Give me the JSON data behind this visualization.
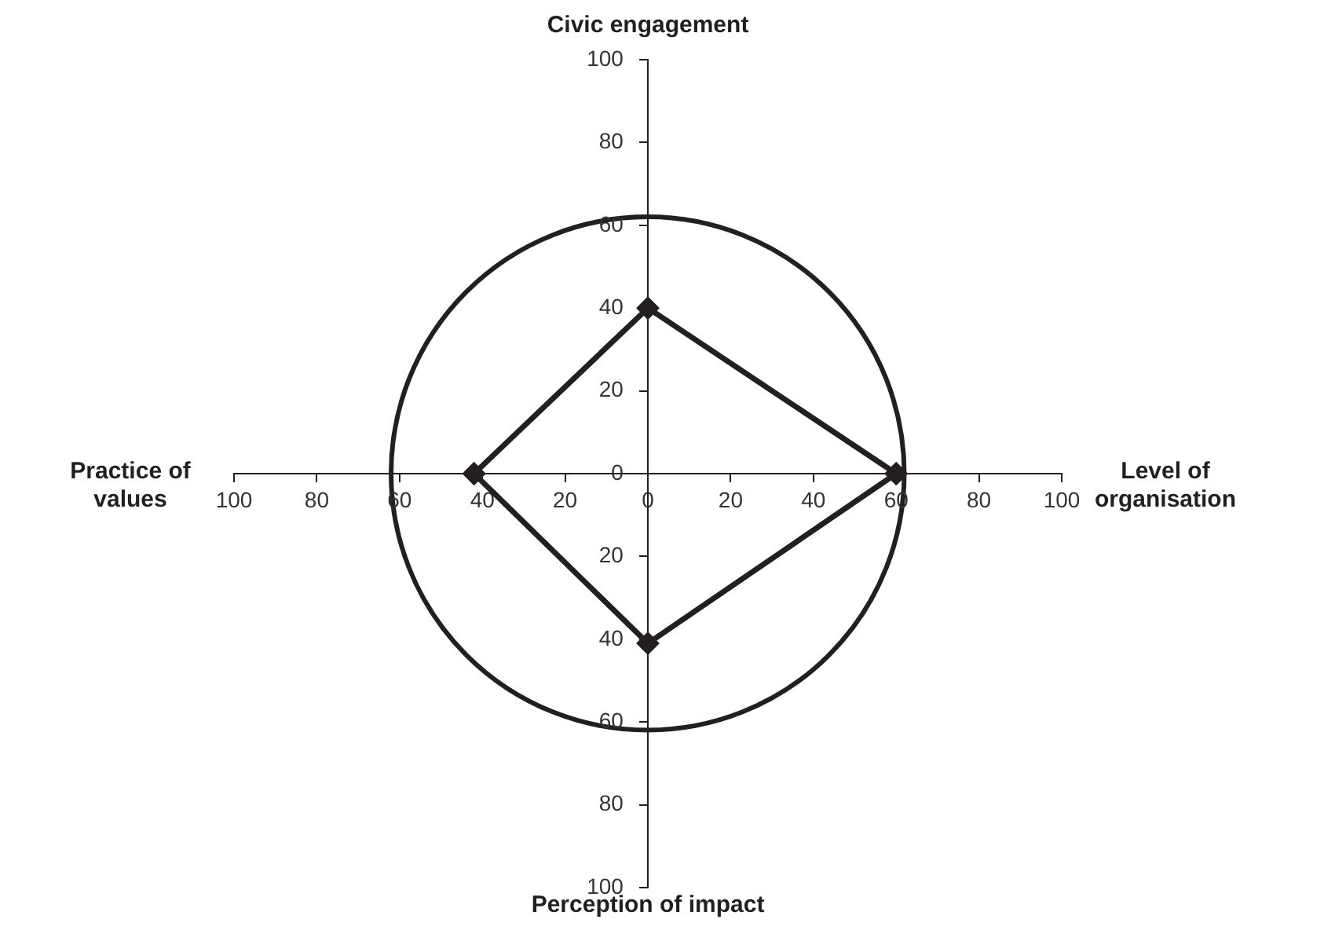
{
  "chart_data": {
    "type": "line",
    "xlim": [
      -100,
      100
    ],
    "xticks": [
      {
        "value": -100,
        "label": "100"
      },
      {
        "value": -80,
        "label": "80"
      },
      {
        "value": -60,
        "label": "60"
      },
      {
        "value": -40,
        "label": "40"
      },
      {
        "value": -20,
        "label": "20"
      },
      0,
      20,
      40,
      60,
      80,
      100
    ],
    "ylim": [
      -100,
      100
    ],
    "yticks": [
      {
        "value": -100,
        "label": "100"
      },
      {
        "value": -80,
        "label": "80"
      },
      {
        "value": -60,
        "label": "60"
      },
      {
        "value": -40,
        "label": "40"
      },
      {
        "value": -20,
        "label": "20"
      },
      0,
      20,
      40,
      60,
      80,
      100
    ],
    "series": [
      {
        "color": "#231f20",
        "marker": "diamond",
        "x": [
          -42,
          0,
          60
        ],
        "values": [
          0,
          40,
          0
        ]
      },
      {
        "color": "#231f20",
        "marker": "diamond",
        "x": [
          -42,
          0,
          60
        ],
        "values": [
          0,
          -41,
          0
        ]
      }
    ],
    "annotations": [
      "Civic engagement",
      "Level of organisation",
      "Perception of impact",
      "Practice of values"
    ],
    "line_style": "solid",
    "grid": false,
    "legend": false
  }
}
